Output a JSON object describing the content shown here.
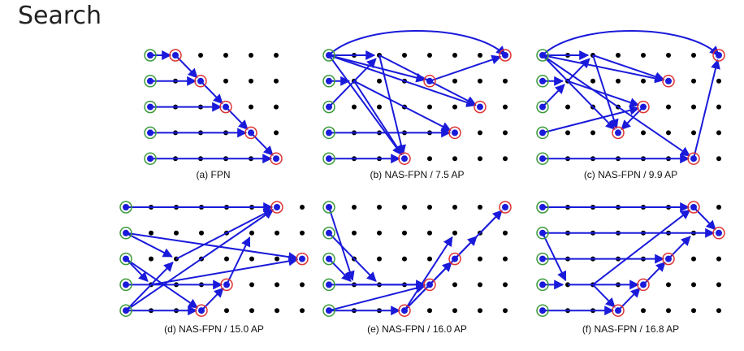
{
  "title": "Search",
  "panels": [
    {
      "caption": "(a) FPN"
    },
    {
      "caption": "(b) NAS-FPN / 7.5 AP"
    },
    {
      "caption": "(c) NAS-FPN / 9.9 AP"
    },
    {
      "caption": "(d) NAS-FPN / 15.0 AP"
    },
    {
      "caption": "(e) NAS-FPN / 16.0 AP"
    },
    {
      "caption": "(f) NAS-FPN / 16.8 AP"
    }
  ]
}
